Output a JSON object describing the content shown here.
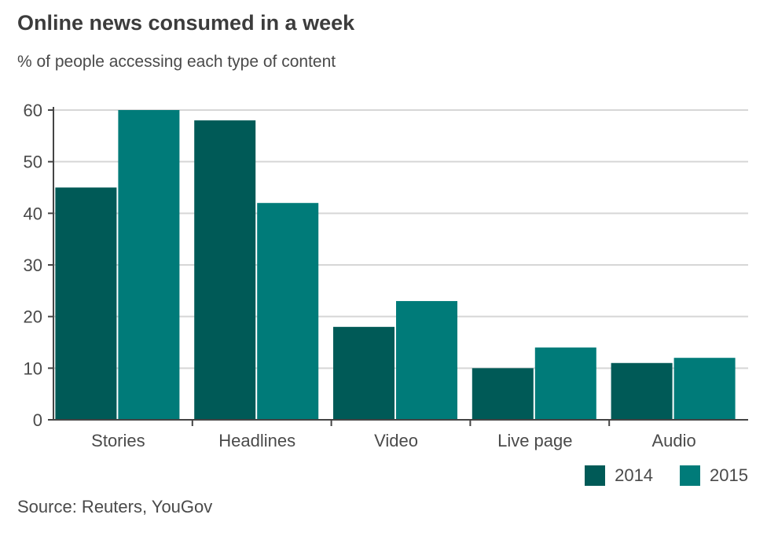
{
  "chart_data": {
    "type": "bar",
    "title": "Online news consumed in a week",
    "subtitle": "% of people accessing each type of content",
    "categories": [
      "Stories",
      "Headlines",
      "Video",
      "Live page",
      "Audio"
    ],
    "series": [
      {
        "name": "2014",
        "values": [
          45,
          58,
          18,
          10,
          11
        ],
        "color": "#005a57"
      },
      {
        "name": "2015",
        "values": [
          60,
          42,
          23,
          14,
          12
        ],
        "color": "#007b79"
      }
    ],
    "ylim": [
      0,
      60
    ],
    "yticks": [
      0,
      10,
      20,
      30,
      40,
      50,
      60
    ],
    "grid": true,
    "legend": "bottom-right",
    "source": "Source: Reuters, YouGov"
  }
}
